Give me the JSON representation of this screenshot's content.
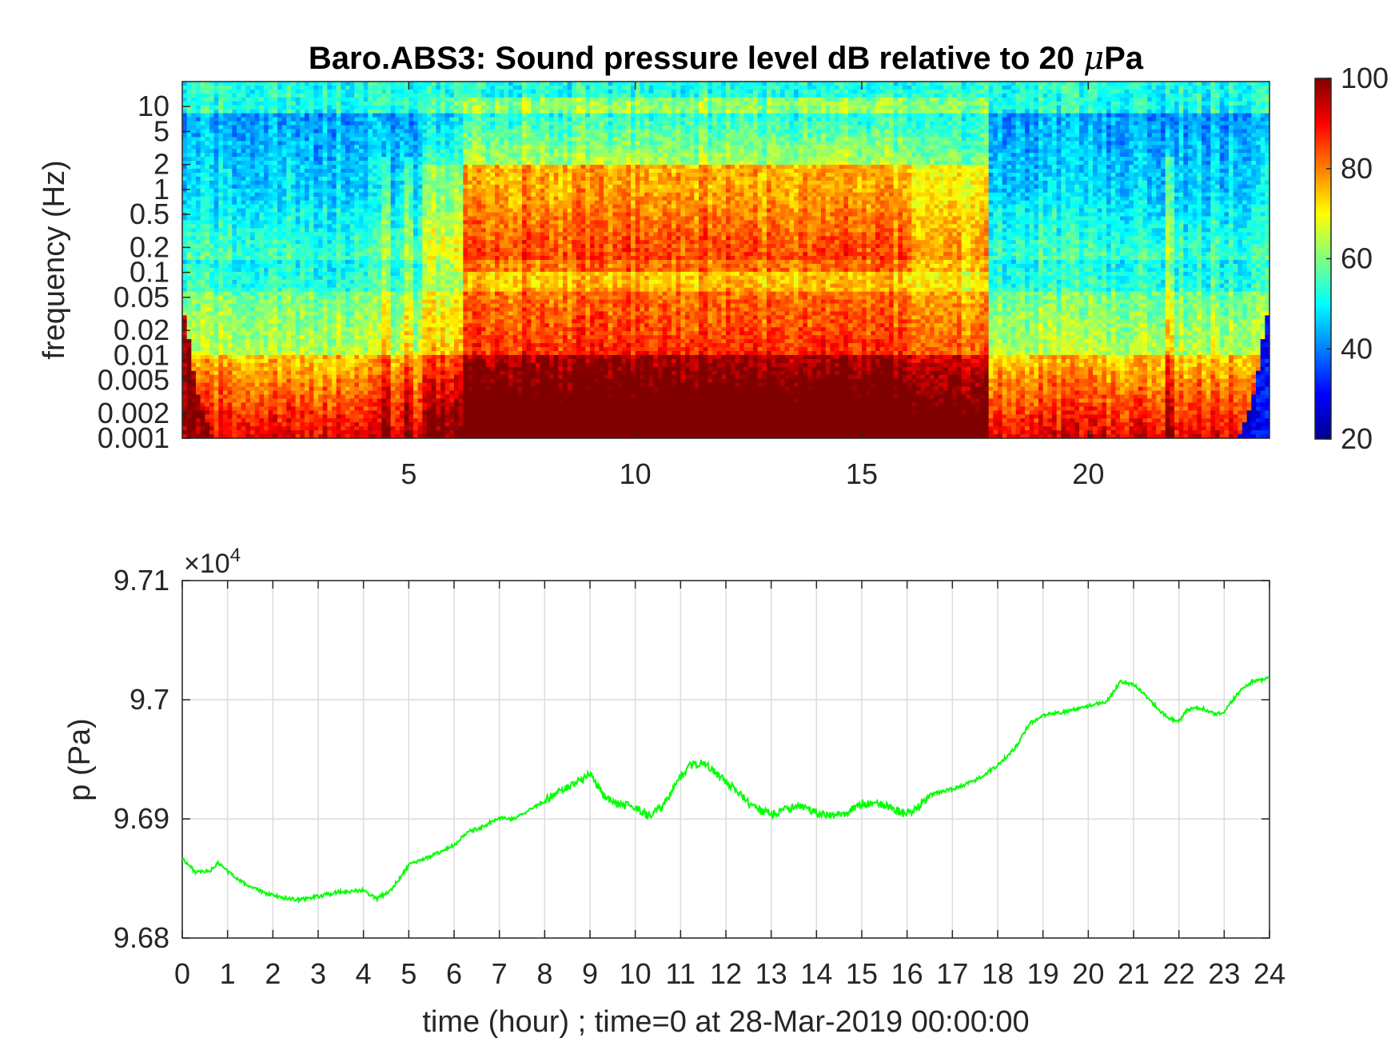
{
  "chart_data": [
    {
      "type": "heatmap",
      "title": "Baro.ABS3: Sound pressure level dB relative to 20 μPa",
      "title_main": "Baro.ABS3: Sound pressure level dB relative to 20 ",
      "title_mu": "μ",
      "title_unit": "Pa",
      "ylabel": "frequency (Hz)",
      "xlabel": "",
      "xlim": [
        0,
        24
      ],
      "x_ticks": [
        5,
        10,
        15,
        20
      ],
      "x_tick_labels": [
        "5",
        "10",
        "15",
        "20"
      ],
      "y_scale": "log",
      "ylim": [
        0.001,
        20
      ],
      "y_ticks": [
        10,
        5,
        2,
        1,
        0.5,
        0.2,
        0.1,
        0.05,
        0.02,
        0.01,
        0.005,
        0.002,
        0.001
      ],
      "y_tick_labels": [
        "10",
        "5",
        "2",
        "1",
        "0.5",
        "0.2",
        "0.1",
        "0.05",
        "0.02",
        "0.01",
        "0.005",
        "0.002",
        "0.001"
      ],
      "colormap": "jet",
      "colorbar": {
        "range": [
          20,
          100
        ],
        "ticks": [
          100,
          80,
          60,
          40,
          20
        ],
        "tick_labels": [
          "100",
          "80",
          "60",
          "40",
          "20"
        ],
        "placement": "right"
      },
      "grid": false
    },
    {
      "type": "line",
      "xlabel": "time (hour) ; time=0 at 28-Mar-2019 00:00:00",
      "ylabel": "p (Pa)",
      "y_exponent_base": "×10",
      "y_exponent_power": "4",
      "xlim": [
        0,
        24
      ],
      "ylim": [
        96800,
        97100
      ],
      "x_ticks": [
        0,
        1,
        2,
        3,
        4,
        5,
        6,
        7,
        8,
        9,
        10,
        11,
        12,
        13,
        14,
        15,
        16,
        17,
        18,
        19,
        20,
        21,
        22,
        23,
        24
      ],
      "x_tick_labels": [
        "0",
        "1",
        "2",
        "3",
        "4",
        "5",
        "6",
        "7",
        "8",
        "9",
        "10",
        "11",
        "12",
        "13",
        "14",
        "15",
        "16",
        "17",
        "18",
        "19",
        "20",
        "21",
        "22",
        "23",
        "24"
      ],
      "y_ticks": [
        96800,
        96900,
        97000,
        97100
      ],
      "y_tick_labels": [
        "9.68",
        "9.69",
        "9.7",
        "9.71"
      ],
      "grid": true,
      "series": [
        {
          "color": "#00ff00",
          "x": [
            0,
            0.3,
            0.6,
            0.8,
            1.0,
            1.4,
            1.8,
            2.2,
            2.6,
            3.0,
            3.5,
            4.0,
            4.3,
            4.6,
            5.0,
            5.5,
            6.0,
            6.3,
            6.6,
            7.0,
            7.3,
            7.6,
            8.0,
            8.4,
            8.8,
            9.0,
            9.3,
            9.6,
            10.0,
            10.3,
            10.6,
            10.9,
            11.2,
            11.5,
            11.8,
            12.2,
            12.6,
            13.0,
            13.3,
            13.6,
            14.0,
            14.3,
            14.6,
            15.0,
            15.3,
            15.6,
            15.9,
            16.2,
            16.5,
            17.0,
            17.5,
            18.0,
            18.4,
            18.7,
            19.0,
            19.5,
            20.0,
            20.4,
            20.7,
            21.0,
            21.3,
            21.6,
            21.8,
            22.0,
            22.2,
            22.5,
            22.8,
            23.0,
            23.3,
            23.6,
            24.0
          ],
          "y": [
            96867,
            96855,
            96856,
            96863,
            96856,
            96845,
            96838,
            96834,
            96832,
            96835,
            96839,
            96840,
            96833,
            96840,
            96861,
            96869,
            96878,
            96889,
            96893,
            96901,
            96900,
            96906,
            96915,
            96925,
            96932,
            96938,
            96920,
            96912,
            96910,
            96902,
            96910,
            96930,
            96945,
            96947,
            96938,
            96925,
            96910,
            96903,
            96908,
            96911,
            96905,
            96903,
            96904,
            96913,
            96914,
            96910,
            96905,
            96908,
            96920,
            96925,
            96932,
            96945,
            96960,
            96980,
            96987,
            96990,
            96995,
            96998,
            97015,
            97013,
            97002,
            96990,
            96984,
            96982,
            96992,
            96993,
            96988,
            96990,
            97005,
            97015,
            97018
          ]
        }
      ]
    }
  ]
}
